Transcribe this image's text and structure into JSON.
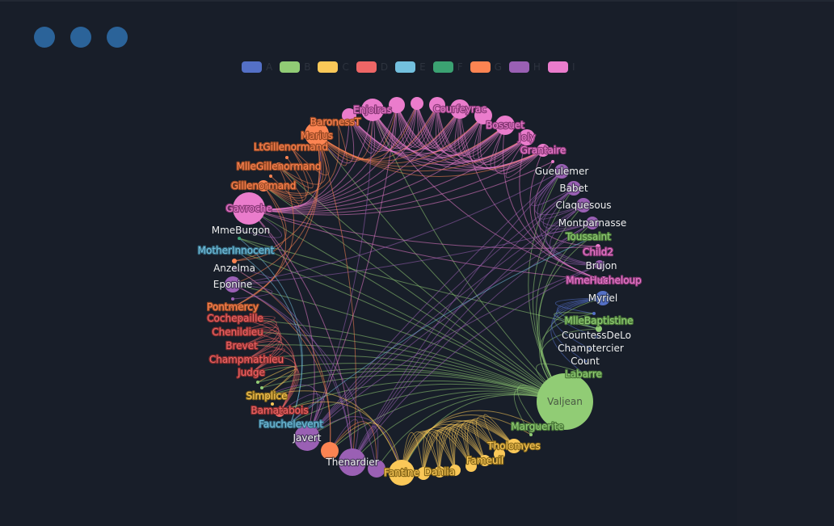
{
  "window_controls": [
    "dot-1",
    "dot-2",
    "dot-3"
  ],
  "legend": [
    {
      "label": "A",
      "color": "#5470c6"
    },
    {
      "label": "B",
      "color": "#91cc75"
    },
    {
      "label": "C",
      "color": "#fac858"
    },
    {
      "label": "D",
      "color": "#ee6666"
    },
    {
      "label": "E",
      "color": "#73c0de"
    },
    {
      "label": "F",
      "color": "#3ba272"
    },
    {
      "label": "G",
      "color": "#fc8452"
    },
    {
      "label": "H",
      "color": "#9a60b4"
    },
    {
      "label": "I",
      "color": "#ea7ccc"
    }
  ],
  "graph": {
    "layout": "circular",
    "nodes": [
      {
        "label": "Valjean",
        "category": "B",
        "value": 35
      },
      {
        "label": "Labarre",
        "category": "B",
        "value": 2
      },
      {
        "label": "Count",
        "category": "A",
        "value": 2
      },
      {
        "label": "Champtercier",
        "category": "A",
        "value": 2
      },
      {
        "label": "CountessDeLo",
        "category": "A",
        "value": 2
      },
      {
        "label": "MlleBaptistine",
        "category": "B",
        "value": 4
      },
      {
        "label": "",
        "category": "A",
        "value": 2
      },
      {
        "label": "Myriel",
        "category": "A",
        "value": 9
      },
      {
        "label": "MmeHucheloup",
        "category": "I",
        "value": 5
      },
      {
        "label": "Brujon",
        "category": "H",
        "value": 6
      },
      {
        "label": "Child2",
        "category": "I",
        "value": 3
      },
      {
        "label": "Toussaint",
        "category": "B",
        "value": 2
      },
      {
        "label": "Montparnasse",
        "category": "H",
        "value": 8
      },
      {
        "label": "Claquesous",
        "category": "H",
        "value": 9
      },
      {
        "label": "Babet",
        "category": "H",
        "value": 9
      },
      {
        "label": "Gueulemer",
        "category": "H",
        "value": 9
      },
      {
        "label": "",
        "category": "I",
        "value": 2
      },
      {
        "label": "Grantaire",
        "category": "I",
        "value": 8
      },
      {
        "label": "Joly",
        "category": "I",
        "value": 10
      },
      {
        "label": "Bossuet",
        "category": "I",
        "value": 12
      },
      {
        "label": "",
        "category": "I",
        "value": 11
      },
      {
        "label": "Courfeyrac",
        "category": "I",
        "value": 12
      },
      {
        "label": "",
        "category": "I",
        "value": 10
      },
      {
        "label": "",
        "category": "I",
        "value": 8
      },
      {
        "label": "",
        "category": "I",
        "value": 10
      },
      {
        "label": "Enjolras",
        "category": "I",
        "value": 14
      },
      {
        "label": "",
        "category": "I",
        "value": 9
      },
      {
        "label": "BaronessT",
        "category": "G",
        "value": 2
      },
      {
        "label": "Marius",
        "category": "G",
        "value": 15
      },
      {
        "label": "LtGillenormand",
        "category": "G",
        "value": 2
      },
      {
        "label": "",
        "category": "G",
        "value": 2
      },
      {
        "label": "MlleGillenormand",
        "category": "G",
        "value": 5
      },
      {
        "label": "",
        "category": "G",
        "value": 2
      },
      {
        "label": "Gillenormand",
        "category": "G",
        "value": 7
      },
      {
        "label": "Gavroche",
        "category": "I",
        "value": 20
      },
      {
        "label": "MmeBurgon",
        "category": "H",
        "value": 1
      },
      {
        "label": "",
        "category": "F",
        "value": 2
      },
      {
        "label": "MotherInnocent",
        "category": "E",
        "value": 2
      },
      {
        "label": "",
        "category": "G",
        "value": 3
      },
      {
        "label": "Anzelma",
        "category": "H",
        "value": 2
      },
      {
        "label": "Eponine",
        "category": "H",
        "value": 10
      },
      {
        "label": "",
        "category": "H",
        "value": 2
      },
      {
        "label": "Pontmercy",
        "category": "G",
        "value": 2
      },
      {
        "label": "Cochepaille",
        "category": "D",
        "value": 2
      },
      {
        "label": "Chenildieu",
        "category": "D",
        "value": 2
      },
      {
        "label": "Brevet",
        "category": "D",
        "value": 2
      },
      {
        "label": "Champmathieu",
        "category": "D",
        "value": 2
      },
      {
        "label": "Judge",
        "category": "D",
        "value": 2
      },
      {
        "label": "",
        "category": "B",
        "value": 2
      },
      {
        "label": "",
        "category": "B",
        "value": 2
      },
      {
        "label": "Simplice",
        "category": "C",
        "value": 2
      },
      {
        "label": "",
        "category": "C",
        "value": 2
      },
      {
        "label": "Bamatabois",
        "category": "D",
        "value": 6
      },
      {
        "label": "Fauchelevent",
        "category": "E",
        "value": 2
      },
      {
        "label": "Javert",
        "category": "H",
        "value": 16
      },
      {
        "label": "",
        "category": "G",
        "value": 11
      },
      {
        "label": "Thenardier",
        "category": "H",
        "value": 17
      },
      {
        "label": "",
        "category": "H",
        "value": 11
      },
      {
        "label": "Fantine",
        "category": "C",
        "value": 16
      },
      {
        "label": "",
        "category": "C",
        "value": 8
      },
      {
        "label": "Dahlia",
        "category": "C",
        "value": 7
      },
      {
        "label": "",
        "category": "C",
        "value": 7
      },
      {
        "label": "",
        "category": "C",
        "value": 7
      },
      {
        "label": "Fameuil",
        "category": "C",
        "value": 7
      },
      {
        "label": "",
        "category": "C",
        "value": 7
      },
      {
        "label": "Tholomyes",
        "category": "C",
        "value": 9
      },
      {
        "label": "",
        "category": "B",
        "value": 2
      },
      {
        "label": "Marguerite",
        "category": "B",
        "value": 2
      }
    ],
    "links": [
      [
        0,
        1
      ],
      [
        0,
        5
      ],
      [
        0,
        6
      ],
      [
        0,
        7
      ],
      [
        0,
        58
      ],
      [
        0,
        54
      ],
      [
        0,
        56
      ],
      [
        0,
        53
      ],
      [
        0,
        52
      ],
      [
        0,
        50
      ],
      [
        0,
        47
      ],
      [
        0,
        46
      ],
      [
        0,
        45
      ],
      [
        0,
        44
      ],
      [
        0,
        43
      ],
      [
        0,
        48
      ],
      [
        0,
        49
      ],
      [
        0,
        34
      ],
      [
        0,
        28
      ],
      [
        0,
        33
      ],
      [
        0,
        25
      ],
      [
        0,
        11
      ],
      [
        0,
        15
      ],
      [
        0,
        14
      ],
      [
        0,
        13
      ],
      [
        0,
        12
      ],
      [
        0,
        67
      ],
      [
        0,
        66
      ],
      [
        0,
        37
      ],
      [
        0,
        36
      ],
      [
        0,
        57
      ],
      [
        0,
        55
      ],
      [
        0,
        40
      ],
      [
        0,
        31
      ],
      [
        7,
        2
      ],
      [
        7,
        3
      ],
      [
        7,
        4
      ],
      [
        7,
        5
      ],
      [
        7,
        6
      ],
      [
        7,
        1
      ],
      [
        5,
        6
      ],
      [
        5,
        36
      ],
      [
        17,
        18
      ],
      [
        17,
        19
      ],
      [
        17,
        20
      ],
      [
        17,
        21
      ],
      [
        17,
        22
      ],
      [
        17,
        23
      ],
      [
        17,
        24
      ],
      [
        17,
        25
      ],
      [
        17,
        26
      ],
      [
        18,
        19
      ],
      [
        18,
        20
      ],
      [
        18,
        21
      ],
      [
        18,
        22
      ],
      [
        18,
        23
      ],
      [
        18,
        24
      ],
      [
        18,
        25
      ],
      [
        18,
        26
      ],
      [
        19,
        20
      ],
      [
        19,
        21
      ],
      [
        19,
        22
      ],
      [
        19,
        23
      ],
      [
        19,
        24
      ],
      [
        19,
        25
      ],
      [
        19,
        26
      ],
      [
        20,
        21
      ],
      [
        20,
        22
      ],
      [
        20,
        23
      ],
      [
        20,
        24
      ],
      [
        20,
        25
      ],
      [
        20,
        26
      ],
      [
        21,
        22
      ],
      [
        21,
        23
      ],
      [
        21,
        24
      ],
      [
        21,
        25
      ],
      [
        21,
        26
      ],
      [
        22,
        23
      ],
      [
        22,
        24
      ],
      [
        22,
        25
      ],
      [
        22,
        26
      ],
      [
        23,
        24
      ],
      [
        23,
        25
      ],
      [
        23,
        26
      ],
      [
        24,
        25
      ],
      [
        24,
        26
      ],
      [
        25,
        26
      ],
      [
        34,
        16
      ],
      [
        34,
        17
      ],
      [
        34,
        18
      ],
      [
        34,
        19
      ],
      [
        34,
        20
      ],
      [
        34,
        21
      ],
      [
        34,
        22
      ],
      [
        34,
        23
      ],
      [
        34,
        24
      ],
      [
        34,
        25
      ],
      [
        34,
        26
      ],
      [
        34,
        8
      ],
      [
        34,
        10
      ],
      [
        34,
        28
      ],
      [
        34,
        54
      ],
      [
        34,
        56
      ],
      [
        28,
        17
      ],
      [
        28,
        18
      ],
      [
        28,
        19
      ],
      [
        28,
        20
      ],
      [
        28,
        21
      ],
      [
        28,
        22
      ],
      [
        28,
        23
      ],
      [
        28,
        24
      ],
      [
        28,
        25
      ],
      [
        28,
        27
      ],
      [
        28,
        29
      ],
      [
        28,
        31
      ],
      [
        28,
        33
      ],
      [
        28,
        40
      ],
      [
        28,
        42
      ],
      [
        28,
        56
      ],
      [
        8,
        17
      ],
      [
        8,
        18
      ],
      [
        8,
        19
      ],
      [
        8,
        21
      ],
      [
        8,
        25
      ],
      [
        10,
        16
      ],
      [
        9,
        12
      ],
      [
        9,
        13
      ],
      [
        9,
        14
      ],
      [
        9,
        15
      ],
      [
        12,
        13
      ],
      [
        12,
        14
      ],
      [
        12,
        15
      ],
      [
        13,
        14
      ],
      [
        13,
        15
      ],
      [
        14,
        15
      ],
      [
        56,
        9
      ],
      [
        56,
        12
      ],
      [
        56,
        13
      ],
      [
        56,
        14
      ],
      [
        56,
        15
      ],
      [
        54,
        9
      ],
      [
        54,
        12
      ],
      [
        54,
        13
      ],
      [
        54,
        14
      ],
      [
        54,
        15
      ],
      [
        40,
        12
      ],
      [
        40,
        15
      ],
      [
        33,
        27
      ],
      [
        33,
        29
      ],
      [
        33,
        30
      ],
      [
        33,
        31
      ],
      [
        33,
        32
      ],
      [
        33,
        38
      ],
      [
        33,
        42
      ],
      [
        31,
        29
      ],
      [
        31,
        42
      ],
      [
        43,
        44
      ],
      [
        43,
        45
      ],
      [
        43,
        46
      ],
      [
        43,
        47
      ],
      [
        44,
        45
      ],
      [
        44,
        46
      ],
      [
        44,
        47
      ],
      [
        45,
        46
      ],
      [
        45,
        47
      ],
      [
        46,
        47
      ],
      [
        52,
        43
      ],
      [
        52,
        44
      ],
      [
        52,
        45
      ],
      [
        52,
        46
      ],
      [
        52,
        47
      ],
      [
        58,
        59
      ],
      [
        58,
        60
      ],
      [
        58,
        61
      ],
      [
        58,
        62
      ],
      [
        58,
        63
      ],
      [
        58,
        64
      ],
      [
        58,
        65
      ],
      [
        59,
        60
      ],
      [
        59,
        61
      ],
      [
        59,
        62
      ],
      [
        59,
        63
      ],
      [
        59,
        64
      ],
      [
        59,
        65
      ],
      [
        60,
        61
      ],
      [
        60,
        62
      ],
      [
        60,
        63
      ],
      [
        60,
        64
      ],
      [
        60,
        65
      ],
      [
        61,
        62
      ],
      [
        61,
        63
      ],
      [
        61,
        64
      ],
      [
        61,
        65
      ],
      [
        62,
        63
      ],
      [
        62,
        64
      ],
      [
        62,
        65
      ],
      [
        63,
        64
      ],
      [
        63,
        65
      ],
      [
        64,
        65
      ],
      [
        54,
        53
      ],
      [
        54,
        50
      ],
      [
        54,
        52
      ],
      [
        54,
        58
      ],
      [
        54,
        25
      ],
      [
        56,
        57
      ],
      [
        56,
        55
      ],
      [
        55,
        57
      ],
      [
        55,
        40
      ],
      [
        55,
        39
      ],
      [
        56,
        39
      ],
      [
        56,
        40
      ],
      [
        40,
        39
      ],
      [
        57,
        40
      ],
      [
        53,
        37
      ],
      [
        53,
        36
      ],
      [
        53,
        11
      ],
      [
        58,
        50
      ],
      [
        58,
        67
      ],
      [
        58,
        66
      ],
      [
        58,
        52
      ],
      [
        58,
        55
      ],
      [
        50,
        48
      ],
      [
        50,
        49
      ],
      [
        41,
        40
      ],
      [
        35,
        34
      ],
      [
        38,
        28
      ],
      [
        26,
        28
      ],
      [
        24,
        54
      ]
    ]
  }
}
